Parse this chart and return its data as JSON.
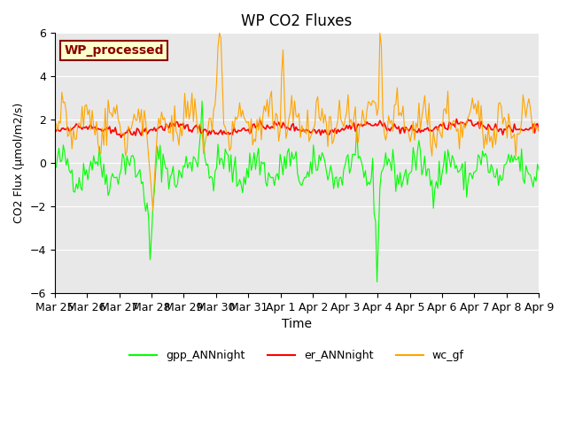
{
  "title": "WP CO2 Fluxes",
  "xlabel": "Time",
  "ylabel": "CO2 Flux (μmol/m2/s)",
  "ylim": [
    -6,
    6
  ],
  "background_color": "#e8e8e8",
  "annotation_text": "WP_processed",
  "annotation_color": "#8b0000",
  "annotation_bg": "#ffffcc",
  "legend_labels": [
    "gpp_ANNnight",
    "er_ANNnight",
    "wc_gf"
  ],
  "legend_colors": [
    "#00ff00",
    "#ff0000",
    "#ffa500"
  ],
  "xtick_labels": [
    "Mar 25",
    "Mar 26",
    "Mar 27",
    "Mar 28",
    "Mar 29",
    "Mar 30",
    "Mar 31",
    "Apr 1",
    "Apr 2",
    "Apr 3",
    "Apr 4",
    "Apr 5",
    "Apr 6",
    "Apr 7",
    "Apr 8",
    "Apr 9"
  ],
  "n_points": 336,
  "seed": 42
}
